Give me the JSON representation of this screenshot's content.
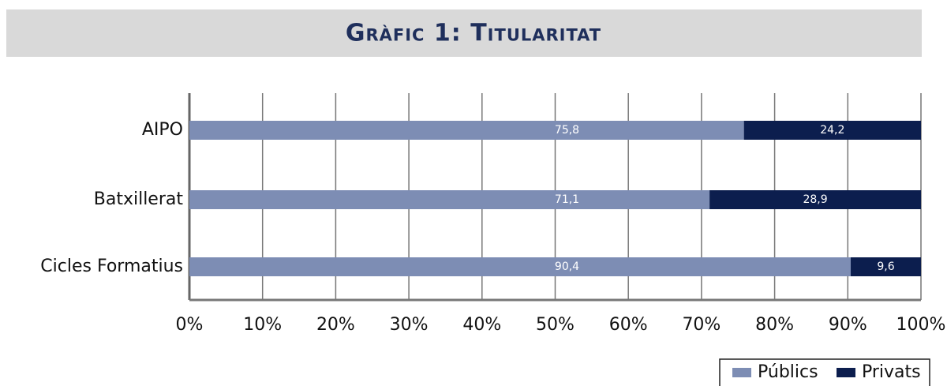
{
  "chart_data": {
    "type": "stacked_barh",
    "title": "Gràfic 1: Titularitat",
    "categories": [
      "AIPO",
      "Batxillerat",
      "Cicles Formatius"
    ],
    "series": [
      {
        "name": "Públics",
        "color": "#7d8db4",
        "values": [
          75.8,
          71.1,
          90.4
        ],
        "value_labels": [
          "75,8",
          "71,1",
          "90,4"
        ]
      },
      {
        "name": "Privats",
        "color": "#0c1e4e",
        "values": [
          24.2,
          28.9,
          9.6
        ],
        "value_labels": [
          "24,2",
          "28,9",
          "9,6"
        ]
      }
    ],
    "xlim": [
      0,
      100
    ],
    "xticks": [
      {
        "value": 0,
        "label": "0%"
      },
      {
        "value": 10,
        "label": "10%"
      },
      {
        "value": 20,
        "label": "20%"
      },
      {
        "value": 30,
        "label": "30%"
      },
      {
        "value": 40,
        "label": "40%"
      },
      {
        "value": 50,
        "label": "50%"
      },
      {
        "value": 60,
        "label": "60%"
      },
      {
        "value": 70,
        "label": "70%"
      },
      {
        "value": 80,
        "label": "80%"
      },
      {
        "value": 90,
        "label": "90%"
      },
      {
        "value": 100,
        "label": "100%"
      }
    ],
    "grid": true,
    "legend": "bottom-right"
  }
}
